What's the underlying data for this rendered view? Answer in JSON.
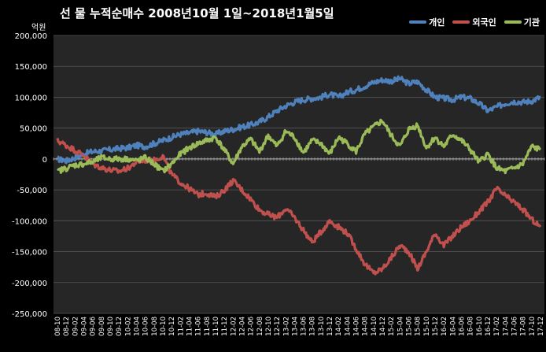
{
  "chart_data": {
    "type": "line",
    "title": "선 물 누적순매수 2008년10월 1일~2018년1월5일",
    "ylabel": "억원",
    "ylim": [
      -250000,
      200000
    ],
    "yticks": [
      "200,000",
      "150,000",
      "100,000",
      "50,000",
      "0",
      "-50,000",
      "-100,000",
      "-150,000",
      "-200,000",
      "-250,000"
    ],
    "ytick_values": [
      200000,
      150000,
      100000,
      50000,
      0,
      -50000,
      -100000,
      -150000,
      -200000,
      -250000
    ],
    "x": [
      "08-10",
      "08-12",
      "09-02",
      "09-04",
      "09-06",
      "09-08",
      "09-10",
      "09-12",
      "10-02",
      "10-04",
      "10-06",
      "10-08",
      "10-10",
      "10-12",
      "11-02",
      "11-04",
      "11-06",
      "11-08",
      "11-10",
      "11-12",
      "12-02",
      "12-04",
      "12-06",
      "12-08",
      "12-10",
      "12-12",
      "13-02",
      "13-04",
      "13-06",
      "13-08",
      "13-10",
      "13-12",
      "14-02",
      "14-04",
      "14-06",
      "14-08",
      "14-10",
      "14-12",
      "15-02",
      "15-04",
      "15-06",
      "15-08",
      "15-10",
      "15-12",
      "16-02",
      "16-04",
      "16-06",
      "16-08",
      "16-10",
      "16-12",
      "17-02",
      "17-04",
      "17-06",
      "17-08",
      "17-10",
      "17-12"
    ],
    "grid": true,
    "legend_position": "top-right",
    "series": [
      {
        "name": "개인",
        "color": "#4F81BD",
        "values": [
          0,
          -3000,
          2000,
          8000,
          12000,
          13000,
          15000,
          17000,
          18000,
          22000,
          20000,
          25000,
          30000,
          35000,
          40000,
          42000,
          45000,
          43000,
          40000,
          45000,
          48000,
          52000,
          55000,
          60000,
          68000,
          78000,
          86000,
          92000,
          96000,
          98000,
          100000,
          105000,
          100000,
          108000,
          112000,
          118000,
          124000,
          128000,
          126000,
          130000,
          122000,
          125000,
          112000,
          100000,
          98000,
          96000,
          100000,
          98000,
          90000,
          78000,
          84000,
          90000,
          93000,
          92000,
          94000,
          100000
        ]
      },
      {
        "name": "외국인",
        "color": "#C0504D",
        "values": [
          30000,
          22000,
          14000,
          6000,
          -8000,
          -14000,
          -18000,
          -20000,
          -15000,
          -5000,
          -2000,
          -2000,
          5000,
          -25000,
          -38000,
          -48000,
          -58000,
          -55000,
          -62000,
          -50000,
          -35000,
          -50000,
          -65000,
          -82000,
          -90000,
          -95000,
          -80000,
          -95000,
          -115000,
          -135000,
          -118000,
          -100000,
          -110000,
          -120000,
          -145000,
          -170000,
          -185000,
          -178000,
          -160000,
          -140000,
          -150000,
          -178000,
          -150000,
          -120000,
          -140000,
          -125000,
          -110000,
          -100000,
          -85000,
          -70000,
          -48000,
          -60000,
          -70000,
          -82000,
          -98000,
          -110000
        ]
      },
      {
        "name": "기관",
        "color": "#9BBB59",
        "values": [
          -20000,
          -15000,
          -10000,
          -8000,
          -5000,
          2000,
          0,
          0,
          0,
          -3000,
          2000,
          -8000,
          -20000,
          -8000,
          8000,
          18000,
          25000,
          30000,
          35000,
          15000,
          -8000,
          20000,
          32000,
          12000,
          38000,
          20000,
          45000,
          35000,
          10000,
          30000,
          25000,
          8000,
          35000,
          25000,
          12000,
          40000,
          52000,
          62000,
          38000,
          20000,
          48000,
          55000,
          18000,
          35000,
          20000,
          40000,
          30000,
          15000,
          -5000,
          8000,
          -15000,
          -20000,
          -15000,
          -8000,
          20000,
          15000
        ]
      }
    ]
  }
}
